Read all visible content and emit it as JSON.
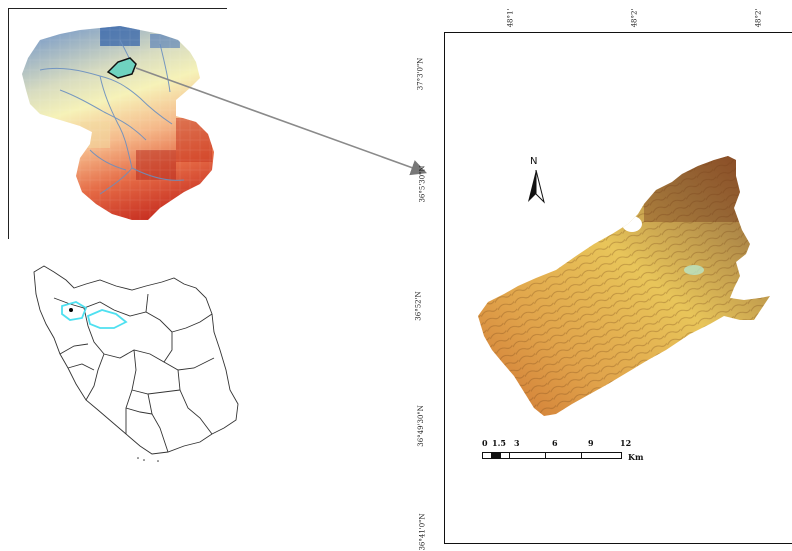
{
  "inset_basin": {
    "description_colors": {
      "low": "#3f6fb5",
      "mid": "#f6f2b8",
      "high": "#d9412a"
    }
  },
  "main_map": {
    "top_ticks": [
      "48°1'",
      "48°2'",
      "48°2'"
    ],
    "left_ticks": [
      "37°3'0\"N",
      "36°5'30\"N",
      "36°52'N",
      "36°49'30\"N",
      "36°41'0\"N"
    ],
    "north_label": "N",
    "scale_bar": {
      "labels": [
        "0",
        "1.5",
        "3",
        "6",
        "9",
        "12"
      ],
      "unit": "Km"
    }
  },
  "colors": {
    "terrain_light": "#e8c55a",
    "terrain_dark": "#8a3a1c",
    "river": "#6a8fc0",
    "highlight": "#4fe0f0"
  }
}
